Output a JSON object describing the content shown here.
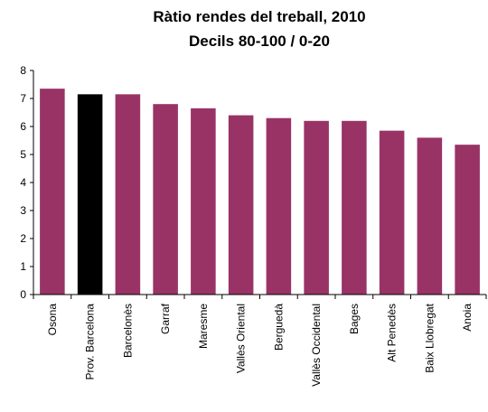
{
  "chart_data": {
    "type": "bar",
    "title": "Ràtio rendes del treball, 2010",
    "subtitle": "Decils 80-100 / 0-20",
    "categories": [
      "Osona",
      "Prov. Barcelona",
      "Barcelonès",
      "Garraf",
      "Maresme",
      "Vallès Oriental",
      "Berguedà",
      "Vallès Occidental",
      "Bages",
      "Alt Penedès",
      "Baix Llobregat",
      "Anoia"
    ],
    "values": [
      7.35,
      7.15,
      7.15,
      6.8,
      6.65,
      6.4,
      6.3,
      6.2,
      6.2,
      5.85,
      5.6,
      5.35
    ],
    "colors": [
      "#993366",
      "#000000",
      "#993366",
      "#993366",
      "#993366",
      "#993366",
      "#993366",
      "#993366",
      "#993366",
      "#993366",
      "#993366",
      "#993366"
    ],
    "ylim": [
      0,
      8
    ],
    "yticks": [
      0,
      1,
      2,
      3,
      4,
      5,
      6,
      7,
      8
    ],
    "grid": false
  }
}
